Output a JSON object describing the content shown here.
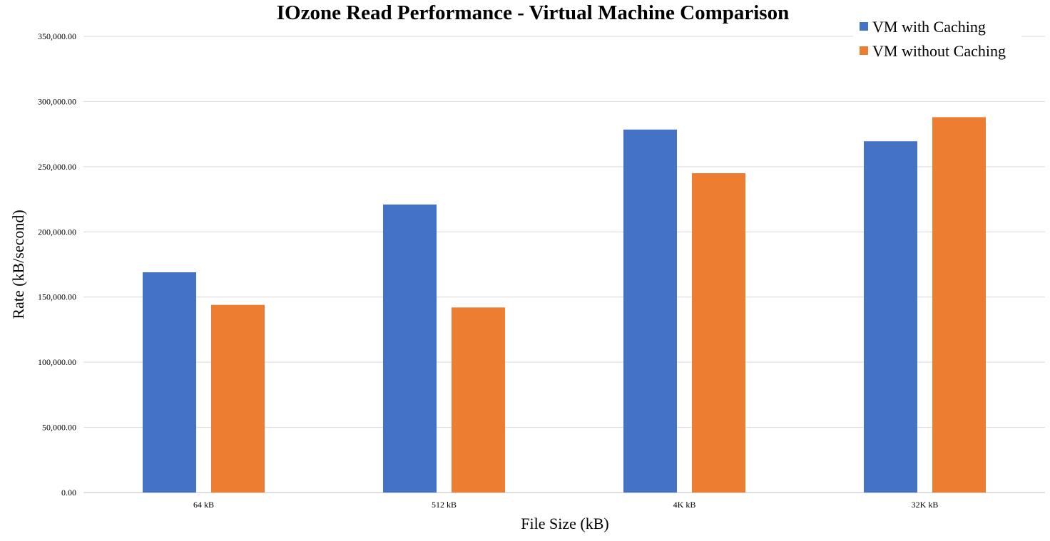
{
  "chart_data": {
    "type": "bar",
    "title": "IOzone Read Performance - Virtual Machine Comparison",
    "xlabel": "File Size (kB)",
    "ylabel": "Rate (kB/second)",
    "categories": [
      "64 kB",
      "512 kB",
      "4K kB",
      "32K kB"
    ],
    "series": [
      {
        "name": "VM with Caching",
        "color": "#4472C4",
        "values": [
          169000,
          221000,
          278500,
          269500
        ]
      },
      {
        "name": "VM without Caching",
        "color": "#ED7D31",
        "values": [
          144000,
          142000,
          245000,
          288000
        ]
      }
    ],
    "ylim": [
      0,
      350000
    ],
    "yticks": [
      0,
      50000,
      100000,
      150000,
      200000,
      250000,
      300000,
      350000
    ],
    "ytick_labels": [
      "0.00",
      "50,000.00",
      "100,000.00",
      "150,000.00",
      "200,000.00",
      "250,000.00",
      "300,000.00",
      "350,000.00"
    ],
    "grid": true,
    "legend_position": "top-right"
  }
}
